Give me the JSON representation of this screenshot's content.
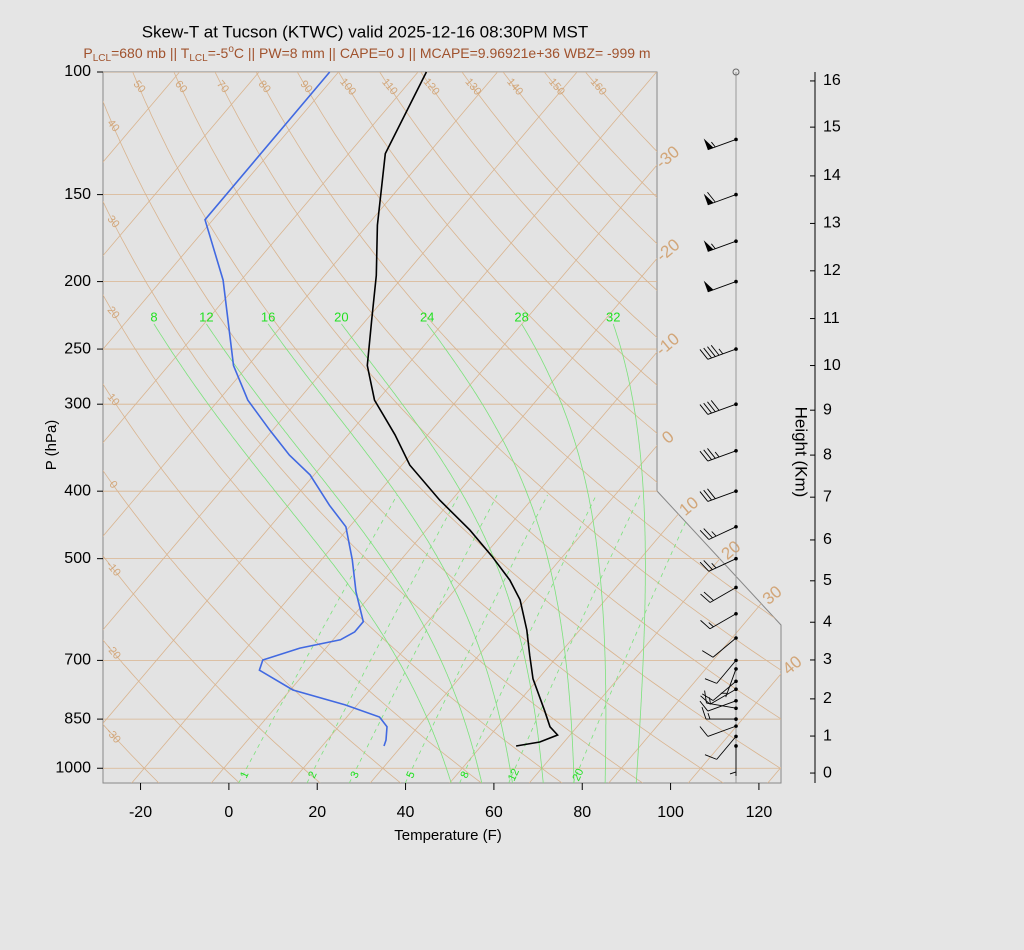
{
  "chart_data": {
    "type": "skewt",
    "title": "Skew-T at Tucson (KTWC) valid 2025-12-16 08:30PM MST",
    "subtitle": [
      {
        "text": "P"
      },
      {
        "text": "LCL",
        "style": "sub"
      },
      {
        "text": "=680 mb || T"
      },
      {
        "text": "LCL",
        "style": "sub"
      },
      {
        "text": "=-5"
      },
      {
        "text": "o",
        "style": "sup"
      },
      {
        "text": "C || PW=8 mm || CAPE=0 J || MCAPE=9.96921e+36 WBZ= -999 m"
      }
    ],
    "xlabel": "Temperature (F)",
    "ylabel": "P (hPa)",
    "xlim": [
      -28.5,
      125
    ],
    "xticks": [
      -20,
      0,
      20,
      40,
      60,
      80,
      100,
      120
    ],
    "ylim": [
      1050,
      100
    ],
    "yticks": [
      100,
      150,
      200,
      250,
      300,
      400,
      500,
      700,
      850,
      1000
    ],
    "log_y": true,
    "series": [
      {
        "color": "#000000",
        "pressure": [
          929,
          917,
          896,
          872,
          828,
          744,
          688,
          633,
          573,
          537,
          496,
          455,
          412,
          367,
          332,
          296,
          264,
          227,
          196,
          166,
          131,
          100
        ],
        "values": [
          57.9,
          62.5,
          65.2,
          61.9,
          57.7,
          48.8,
          43.5,
          38.0,
          30.7,
          24.6,
          15.9,
          5.9,
          -6.7,
          -20.2,
          -29.4,
          -40.7,
          -49.0,
          -56.8,
          -64.3,
          -73.7,
          -85.7,
          -92.1
        ]
      },
      {
        "color": "#4169e1",
        "pressure": [
          929,
          911,
          872,
          844,
          811,
          772,
          723,
          699,
          672,
          654,
          637,
          616,
          558,
          502,
          450,
          419,
          379,
          355,
          327,
          296,
          264,
          199,
          163,
          100
        ],
        "values": [
          28.0,
          27.3,
          25.0,
          21.4,
          11.3,
          -3.4,
          -14.8,
          -16.0,
          -9.9,
          -2.3,
          -0.6,
          -0.6,
          -8.0,
          -15.0,
          -22.8,
          -30.7,
          -40.9,
          -49.4,
          -58.6,
          -69.4,
          -79.3,
          -98.1,
          -113.8,
          -114.0
        ]
      }
    ],
    "dry_adiabat_labels": [
      -30,
      -20,
      -10,
      0,
      10,
      20,
      30,
      40,
      50,
      60,
      70,
      80,
      90,
      100,
      110,
      120,
      130,
      140,
      150,
      160
    ],
    "isotherm_labels": [
      -30,
      -20,
      -10,
      0,
      10,
      20,
      30,
      40
    ],
    "moist_adiabat_labels": [
      8,
      12,
      16,
      20,
      24,
      28,
      32
    ],
    "mixing_ratio_labels": [
      1,
      2,
      3,
      5,
      8,
      12,
      20
    ],
    "wind": {
      "pressure": [
        929,
        900,
        870,
        850,
        820,
        800,
        770,
        750,
        720,
        700,
        650,
        600,
        550,
        500,
        450,
        400,
        350,
        300,
        250,
        200,
        175,
        150,
        125
      ],
      "speed": [
        5,
        10,
        10,
        15,
        15,
        10,
        10,
        10,
        5,
        10,
        10,
        15,
        20,
        25,
        25,
        30,
        35,
        40,
        45,
        50,
        55,
        60,
        55
      ],
      "direction": [
        180,
        220,
        250,
        270,
        280,
        250,
        240,
        230,
        200,
        220,
        230,
        240,
        240,
        245,
        245,
        250,
        250,
        250,
        250,
        250,
        250,
        250,
        250
      ]
    },
    "height_axis": {
      "label": "Height (Km)",
      "ticks": [
        0,
        1,
        2,
        3,
        4,
        5,
        6,
        7,
        8,
        9,
        10,
        11,
        12,
        13,
        14,
        15,
        16
      ],
      "tick_pressure": [
        1016,
        899,
        795,
        699,
        617,
        538,
        470,
        408,
        355,
        306,
        264,
        226,
        193,
        165,
        141,
        120,
        103
      ]
    }
  }
}
